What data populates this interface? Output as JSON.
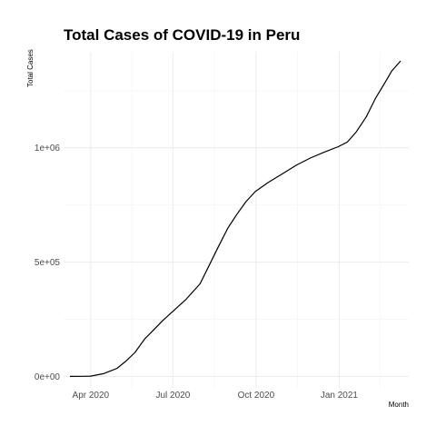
{
  "chart_data": {
    "type": "line",
    "title": "Total Cases of COVID-19 in Peru",
    "xlabel": "Month",
    "ylabel": "Total Cases",
    "x_ticks": [
      {
        "date": "2020-04-01",
        "label": "Apr 2020"
      },
      {
        "date": "2020-07-01",
        "label": "Jul 2020"
      },
      {
        "date": "2020-10-01",
        "label": "Oct 2020"
      },
      {
        "date": "2021-01-01",
        "label": "Jan 2021"
      }
    ],
    "y_ticks": [
      {
        "value": 0,
        "label": "0e+00"
      },
      {
        "value": 500000,
        "label": "5e+05"
      },
      {
        "value": 1000000,
        "label": "1e+06"
      }
    ],
    "xlim": [
      "2020-03-02",
      "2021-03-19"
    ],
    "ylim": [
      -50000,
      1420000
    ],
    "grid": true,
    "legend": "none",
    "colors": {
      "line": "#000000",
      "grid": "#ebebeb",
      "background": "#ffffff"
    },
    "series": [
      {
        "values": [
          {
            "x": "2020-03-09",
            "y": 0
          },
          {
            "x": "2020-03-23",
            "y": 400
          },
          {
            "x": "2020-04-01",
            "y": 1400
          },
          {
            "x": "2020-04-15",
            "y": 12000
          },
          {
            "x": "2020-04-30",
            "y": 35000
          },
          {
            "x": "2020-05-10",
            "y": 67000
          },
          {
            "x": "2020-05-20",
            "y": 105000
          },
          {
            "x": "2020-05-31",
            "y": 165000
          },
          {
            "x": "2020-06-10",
            "y": 205000
          },
          {
            "x": "2020-06-20",
            "y": 245000
          },
          {
            "x": "2020-07-01",
            "y": 285000
          },
          {
            "x": "2020-07-15",
            "y": 335000
          },
          {
            "x": "2020-07-31",
            "y": 405000
          },
          {
            "x": "2020-08-10",
            "y": 485000
          },
          {
            "x": "2020-08-20",
            "y": 565000
          },
          {
            "x": "2020-08-31",
            "y": 650000
          },
          {
            "x": "2020-09-10",
            "y": 710000
          },
          {
            "x": "2020-09-20",
            "y": 765000
          },
          {
            "x": "2020-09-30",
            "y": 808000
          },
          {
            "x": "2020-10-15",
            "y": 850000
          },
          {
            "x": "2020-10-31",
            "y": 888000
          },
          {
            "x": "2020-11-15",
            "y": 925000
          },
          {
            "x": "2020-11-30",
            "y": 955000
          },
          {
            "x": "2020-12-15",
            "y": 980000
          },
          {
            "x": "2020-12-31",
            "y": 1005000
          },
          {
            "x": "2021-01-10",
            "y": 1025000
          },
          {
            "x": "2021-01-20",
            "y": 1070000
          },
          {
            "x": "2021-01-31",
            "y": 1135000
          },
          {
            "x": "2021-02-10",
            "y": 1215000
          },
          {
            "x": "2021-02-20",
            "y": 1280000
          },
          {
            "x": "2021-02-28",
            "y": 1335000
          },
          {
            "x": "2021-03-10",
            "y": 1380000
          }
        ]
      }
    ]
  }
}
